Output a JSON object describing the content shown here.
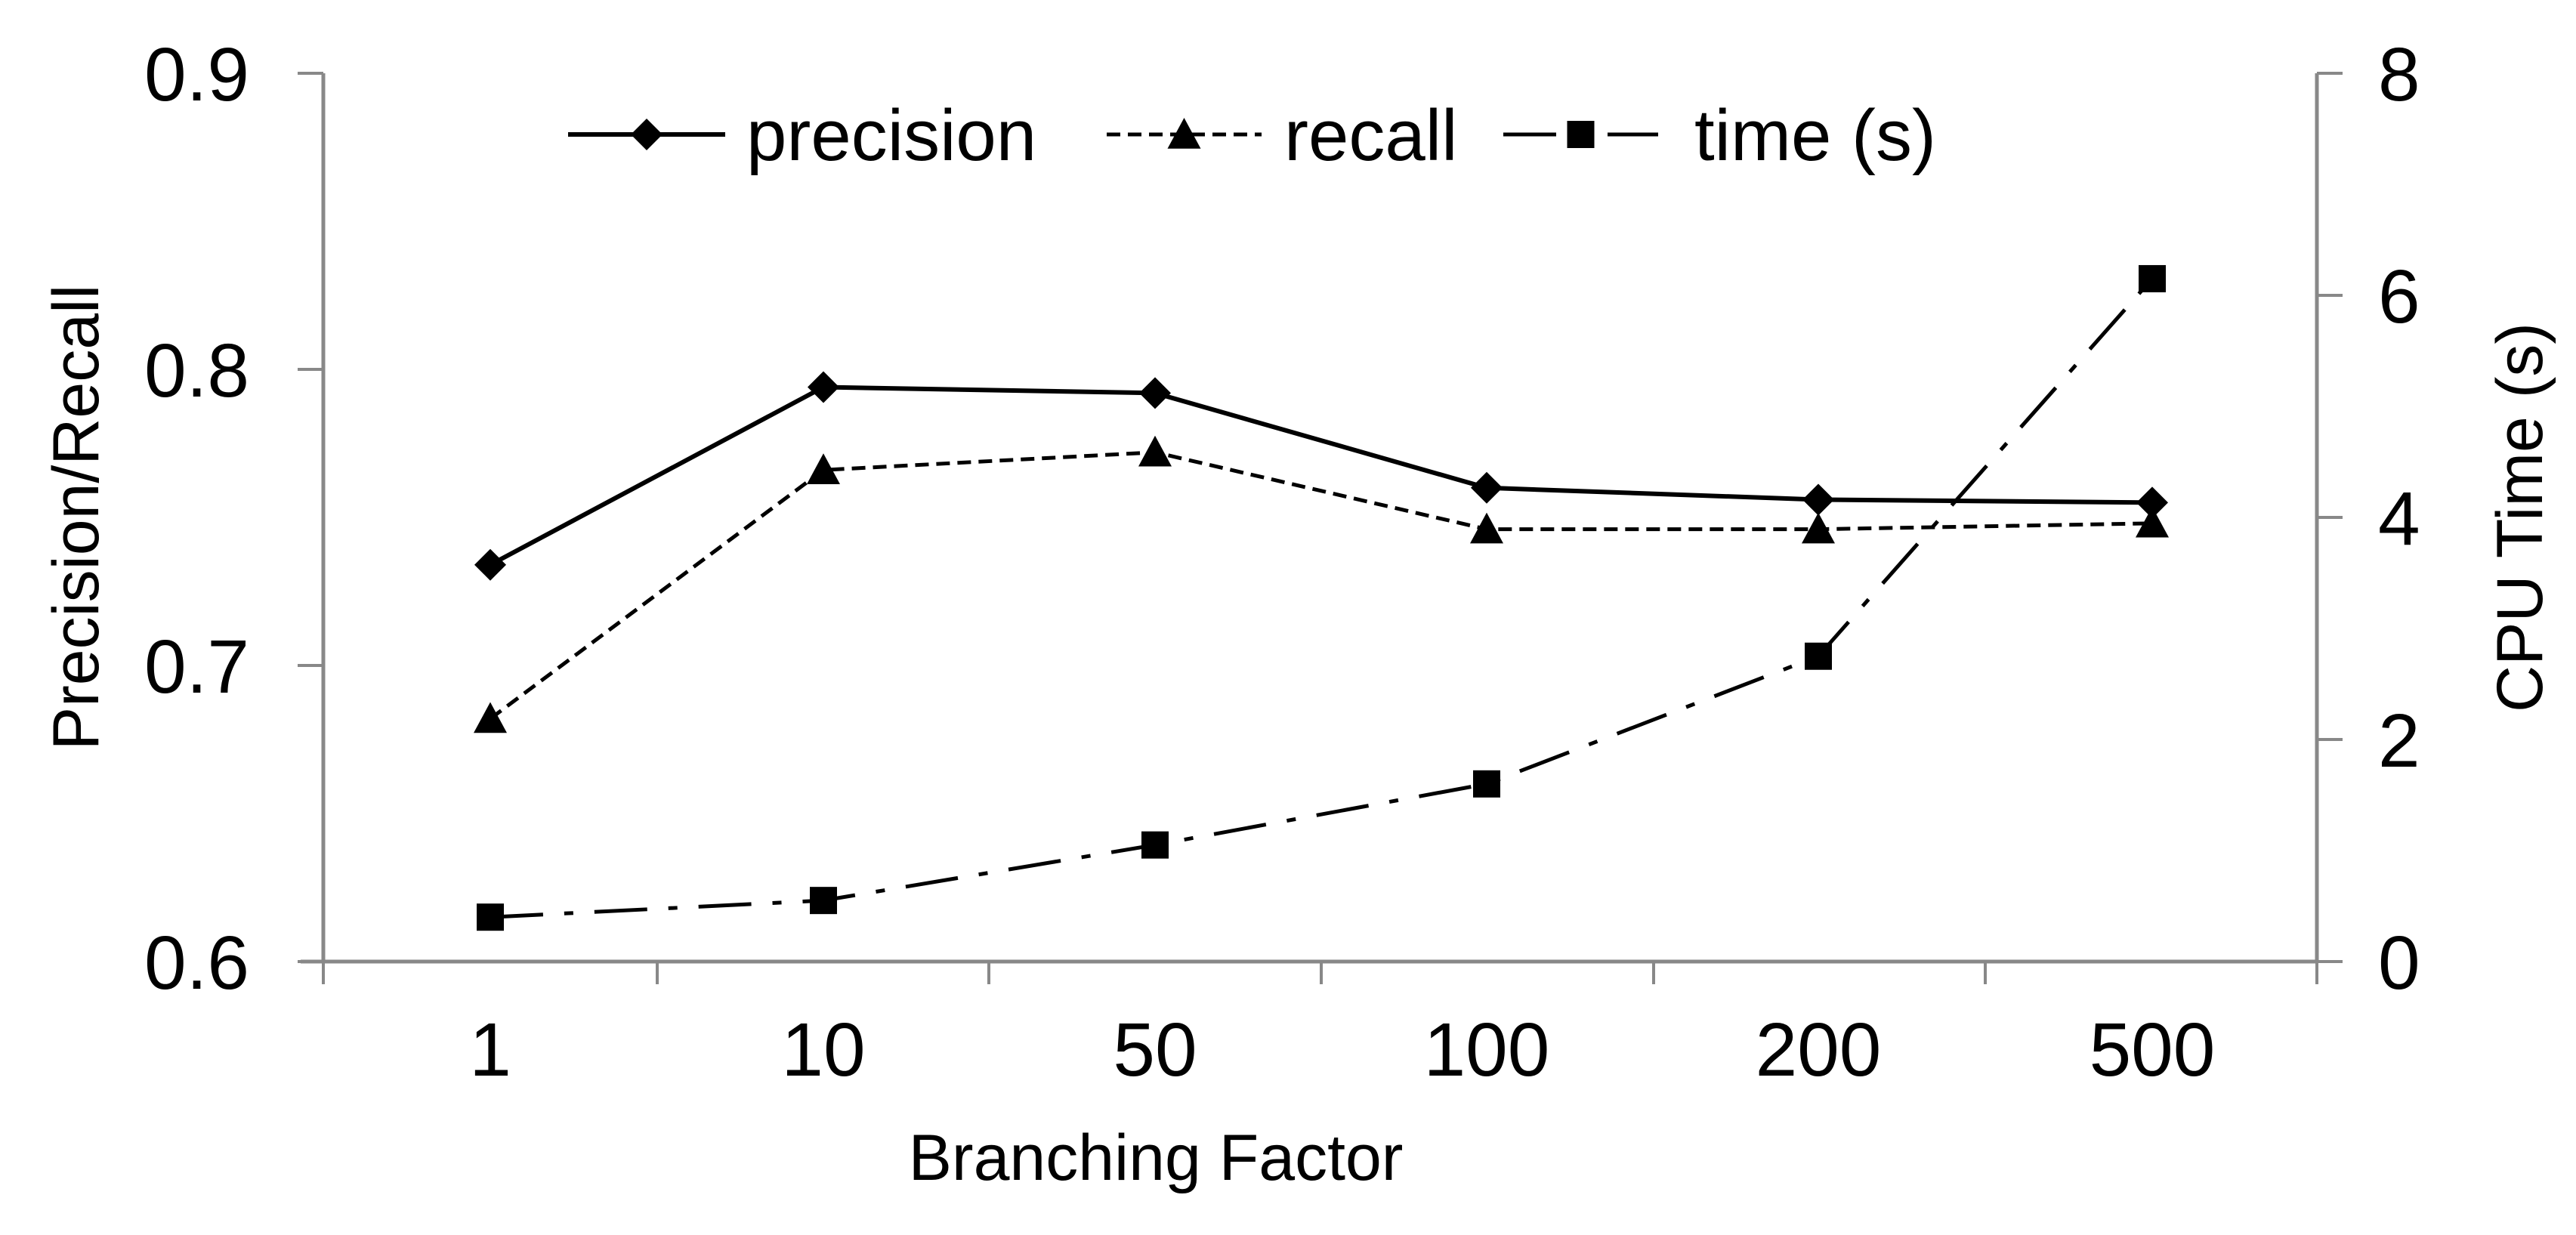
{
  "chart_data": {
    "type": "line",
    "title": "",
    "xlabel": "Branching Factor",
    "ylabel": "Precision/Recall",
    "y2label": "CPU Time (s)",
    "categories": [
      "1",
      "10",
      "50",
      "100",
      "200",
      "500"
    ],
    "ylim": [
      0.6,
      0.9
    ],
    "y_ticks": [
      "0.6",
      "0.7",
      "0.8",
      "0.9"
    ],
    "y2lim": [
      0,
      8
    ],
    "y2_ticks": [
      "0",
      "2",
      "4",
      "6",
      "8"
    ],
    "legend_position": "top",
    "series": [
      {
        "name": "precision",
        "axis": "left",
        "marker": "diamond",
        "line": "solid",
        "values": [
          0.734,
          0.794,
          0.792,
          0.76,
          0.756,
          0.755
        ]
      },
      {
        "name": "recall",
        "axis": "left",
        "marker": "triangle",
        "line": "dashed",
        "values": [
          0.682,
          0.766,
          0.772,
          0.746,
          0.746,
          0.748
        ]
      },
      {
        "name": "time (s)",
        "axis": "right",
        "marker": "square",
        "line": "dashdot",
        "values": [
          0.4,
          0.55,
          1.05,
          1.6,
          2.75,
          6.15
        ]
      }
    ]
  }
}
